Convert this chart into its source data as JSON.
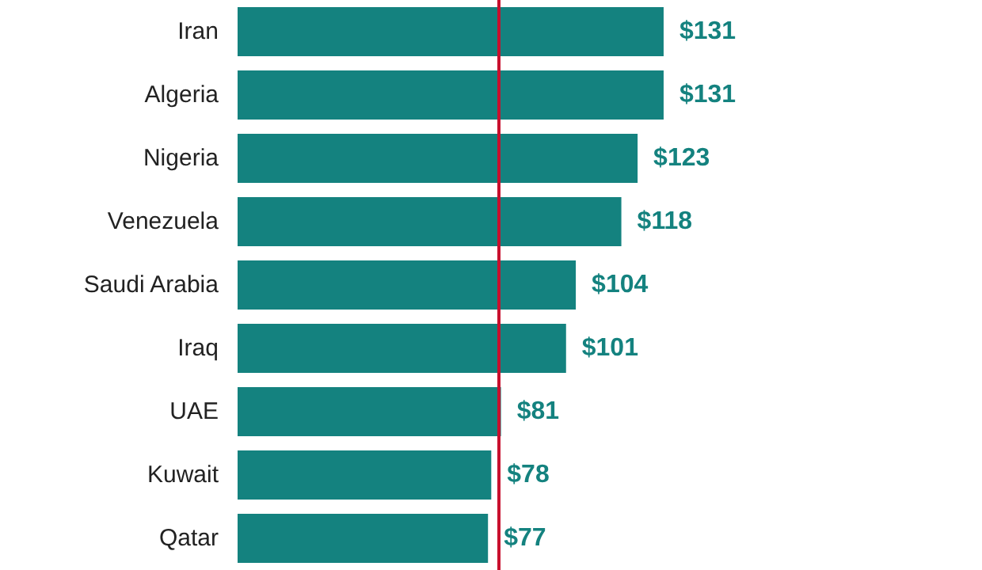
{
  "chart_data": {
    "type": "bar",
    "orientation": "horizontal",
    "categories": [
      "Iran",
      "Algeria",
      "Nigeria",
      "Venezuela",
      "Saudi Arabia",
      "Iraq",
      "UAE",
      "Kuwait",
      "Qatar"
    ],
    "values": [
      131,
      131,
      123,
      118,
      104,
      101,
      81,
      78,
      77
    ],
    "value_labels": [
      "$131",
      "$131",
      "$123",
      "$118",
      "$104",
      "$101",
      "$81",
      "$78",
      "$77"
    ],
    "color": "#14827f",
    "ref_lines": [
      {
        "axis": "x",
        "value": 80,
        "color": "#c8102e"
      }
    ]
  }
}
